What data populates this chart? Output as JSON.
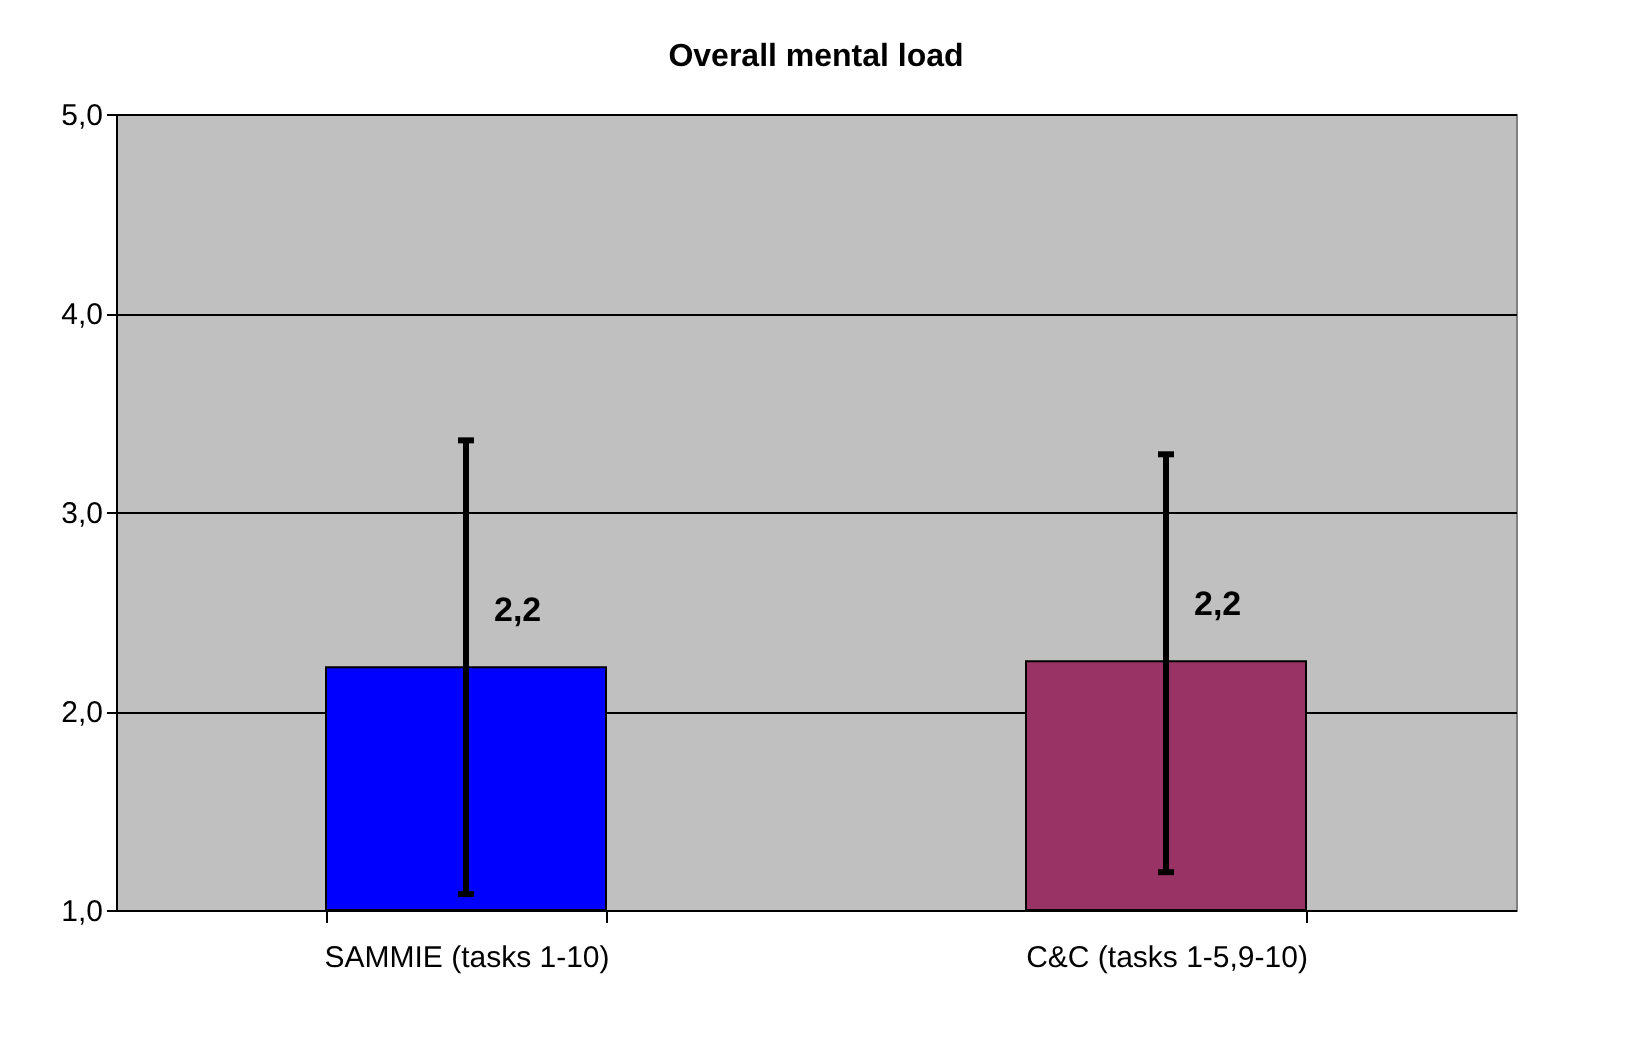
{
  "chart_data": {
    "type": "bar",
    "title": "Overall mental load",
    "categories": [
      "SAMMIE (tasks 1-10)",
      "C&C (tasks 1-5,9-10)"
    ],
    "values": [
      2.22,
      2.25
    ],
    "colors": [
      "#0000ff",
      "#993366"
    ],
    "errors": [
      [
        1.08,
        3.36
      ],
      [
        1.19,
        3.29
      ]
    ],
    "value_labels": [
      "2,2",
      "2,2"
    ],
    "ylim": [
      1.0,
      5.0
    ],
    "yticks": [
      {
        "value": 1.0,
        "label": "1,0"
      },
      {
        "value": 2.0,
        "label": "2,0"
      },
      {
        "value": 3.0,
        "label": "3,0"
      },
      {
        "value": 4.0,
        "label": "4,0"
      },
      {
        "value": 5.0,
        "label": "5,0"
      }
    ],
    "grid": "y"
  }
}
